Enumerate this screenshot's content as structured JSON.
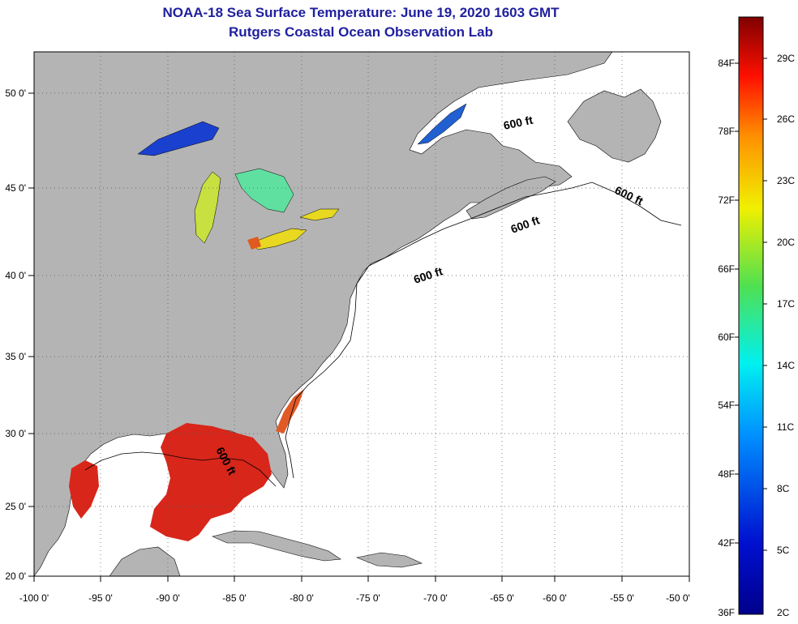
{
  "title": {
    "line1": "NOAA-18 Sea Surface Temperature:  June 19, 2020 1603 GMT",
    "line2": "Rutgers Coastal Ocean Observation Lab"
  },
  "colors": {
    "land": "#b4b4b4",
    "ocean": "#ffffff",
    "title": "#1f1f9e",
    "gulf_sst": "#d8261a",
    "lakes": "#e8d820"
  },
  "axes": {
    "lon_labels": [
      "-100 0'",
      "-95 0'",
      "-90 0'",
      "-85 0'",
      "-80 0'",
      "-75 0'",
      "-70 0'",
      "-65 0'",
      "-60 0'",
      "-55 0'",
      "-50 0'"
    ],
    "lat_labels": [
      "50 0'",
      "45 0'",
      "40 0'",
      "35 0'",
      "30 0'",
      "25 0'",
      "20 0'"
    ]
  },
  "contour_labels": [
    "600 ft",
    "600 ft",
    "600 ft",
    "600 ft",
    "600 ft"
  ],
  "colorbar": {
    "fahrenheit": [
      "84F",
      "78F",
      "72F",
      "66F",
      "60F",
      "54F",
      "48F",
      "42F",
      "36F"
    ],
    "celsius": [
      "29C",
      "26C",
      "23C",
      "20C",
      "17C",
      "14C",
      "11C",
      "8C",
      "5C",
      "2C"
    ]
  }
}
